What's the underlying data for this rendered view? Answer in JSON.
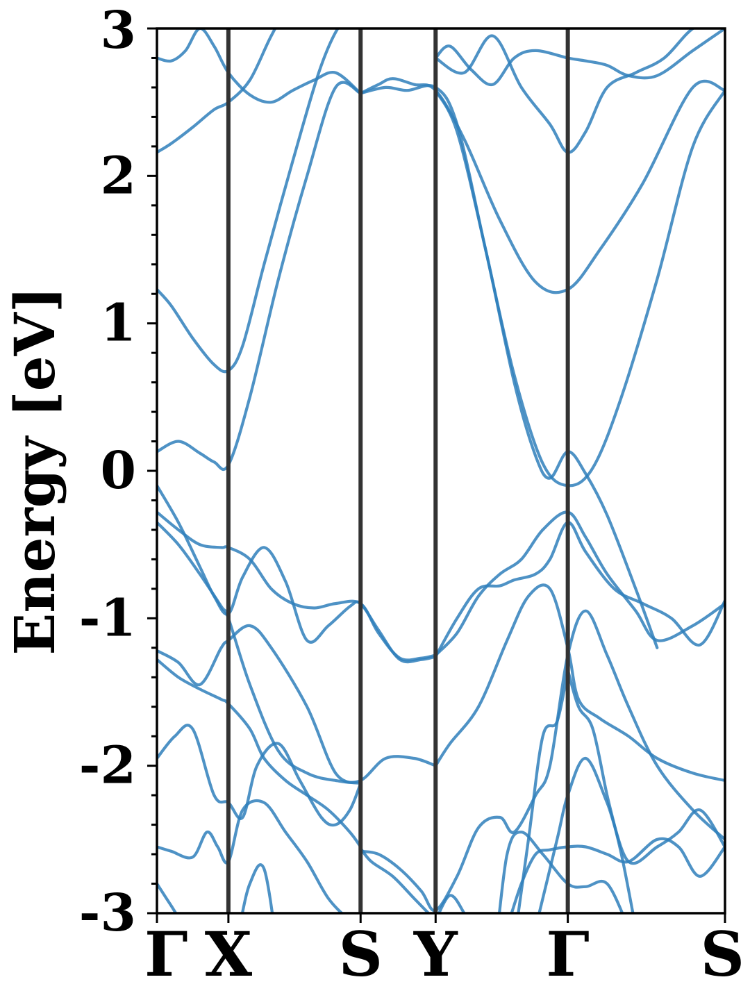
{
  "chart_data": {
    "type": "line",
    "title": "",
    "xlabel": "",
    "ylabel": "Energy [eV]",
    "ylim": [
      -3,
      3
    ],
    "yticks": [
      "-3",
      "-2",
      "-1",
      "0",
      "1",
      "2",
      "3"
    ],
    "kpoints": [
      {
        "label": "Γ",
        "x": 0.0
      },
      {
        "label": "X",
        "x": 1.0
      },
      {
        "label": "S",
        "x": 2.85
      },
      {
        "label": "Y",
        "x": 3.9
      },
      {
        "label": "Γ",
        "x": 5.75
      },
      {
        "label": "S",
        "x": 7.95
      }
    ],
    "colors": {
      "band": "#2f7fbb",
      "kline": "#333333"
    },
    "grid": false,
    "series": [
      {
        "x": [
          0,
          0.3,
          0.6,
          0.8,
          1.0,
          1.3,
          1.7,
          2.1,
          2.5,
          2.85
        ],
        "values": [
          0.13,
          0.2,
          0.12,
          0.06,
          0.04,
          0.5,
          1.3,
          2.0,
          2.6,
          2.56
        ]
      },
      {
        "x": [
          0,
          0.2,
          0.5,
          0.8,
          1.0,
          1.2,
          1.5,
          1.9,
          2.3,
          2.6,
          2.85
        ],
        "values": [
          1.23,
          1.12,
          0.9,
          0.72,
          0.68,
          0.85,
          1.4,
          2.1,
          2.75,
          3.05,
          3.1
        ]
      },
      {
        "x": [
          0,
          0.2,
          0.5,
          0.8,
          1.0,
          1.3,
          1.6,
          1.9,
          2.2,
          2.5,
          2.85
        ],
        "values": [
          2.16,
          2.22,
          2.33,
          2.45,
          2.5,
          2.65,
          2.95,
          3.2,
          3.3,
          3.2,
          3.1
        ]
      },
      {
        "x": [
          0,
          0.2,
          0.4,
          0.6,
          0.8,
          1.0,
          1.3,
          1.6,
          1.9,
          2.2,
          2.5,
          2.85
        ],
        "values": [
          2.8,
          2.78,
          2.85,
          3.0,
          2.88,
          2.7,
          2.55,
          2.5,
          2.58,
          2.65,
          2.7,
          2.56
        ]
      },
      {
        "x": [
          2.85,
          3.1,
          3.3,
          3.6,
          3.9,
          4.3,
          4.8,
          5.3,
          5.75,
          6.2,
          6.8,
          7.5,
          7.95
        ],
        "values": [
          2.56,
          2.62,
          2.66,
          2.62,
          2.58,
          2.25,
          1.7,
          1.28,
          1.23,
          1.5,
          1.95,
          2.6,
          2.58
        ]
      },
      {
        "x": [
          2.85,
          3.2,
          3.5,
          3.9,
          4.2,
          4.6,
          5.0,
          5.4,
          5.75,
          6.1,
          6.5,
          7.0,
          7.5,
          7.95
        ],
        "values": [
          2.56,
          2.6,
          2.58,
          2.6,
          2.35,
          1.5,
          0.65,
          0.05,
          -0.1,
          0.02,
          0.5,
          1.3,
          2.2,
          2.58
        ]
      },
      {
        "x": [
          3.9,
          4.1,
          4.4,
          4.7,
          5.0,
          5.3,
          5.75,
          6.0,
          6.3,
          6.6,
          7.0,
          7.5,
          7.95
        ],
        "values": [
          2.8,
          2.88,
          2.72,
          2.62,
          2.8,
          2.85,
          2.8,
          2.78,
          2.75,
          2.68,
          2.68,
          2.85,
          3.0
        ]
      },
      {
        "x": [
          3.9,
          4.2,
          4.6,
          5.0,
          5.3,
          5.5,
          5.75,
          6.0,
          6.3,
          6.7,
          7.0
        ],
        "values": [
          2.58,
          2.3,
          1.5,
          0.6,
          0.1,
          -0.05,
          0.13,
          -0.02,
          -0.3,
          -0.8,
          -1.2
        ]
      },
      {
        "x": [
          3.9,
          4.3,
          4.7,
          5.1,
          5.5,
          5.75,
          6.0,
          6.3,
          6.7,
          7.1,
          7.5,
          7.95
        ],
        "values": [
          2.8,
          2.7,
          2.95,
          2.6,
          2.35,
          2.16,
          2.3,
          2.6,
          2.7,
          2.8,
          3.0,
          3.1
        ]
      },
      {
        "x": [
          0,
          0.3,
          0.6,
          0.9,
          1.0,
          1.3,
          1.6,
          1.9,
          2.2,
          2.5,
          2.85,
          3.1,
          3.4,
          3.7,
          3.9
        ],
        "values": [
          -0.28,
          -0.4,
          -0.5,
          -0.52,
          -0.52,
          -0.6,
          -0.8,
          -0.9,
          -0.93,
          -0.9,
          -0.9,
          -1.1,
          -1.27,
          -1.27,
          -1.25
        ]
      },
      {
        "x": [
          3.9,
          4.2,
          4.5,
          4.8,
          5.1,
          5.4,
          5.75,
          6.0,
          6.3,
          6.7,
          7.0,
          7.5,
          7.95
        ],
        "values": [
          -1.25,
          -1.1,
          -0.85,
          -0.7,
          -0.6,
          -0.4,
          -0.28,
          -0.45,
          -0.7,
          -0.95,
          -1.15,
          -1.05,
          -0.9
        ]
      },
      {
        "x": [
          0,
          0.3,
          0.6,
          0.8,
          1.0,
          1.2,
          1.5,
          1.8,
          2.1,
          2.4,
          2.7,
          2.85,
          3.1,
          3.4,
          3.7,
          3.9
        ],
        "values": [
          -0.1,
          -0.35,
          -0.65,
          -0.85,
          -0.97,
          -0.72,
          -0.52,
          -0.75,
          -1.15,
          -1.05,
          -0.92,
          -0.9,
          -1.08,
          -1.28,
          -1.28,
          -1.26
        ]
      },
      {
        "x": [
          3.9,
          4.2,
          4.5,
          4.8,
          5.0,
          5.3,
          5.5,
          5.75,
          6.0,
          6.4,
          6.8,
          7.2,
          7.6,
          7.95
        ],
        "values": [
          -1.26,
          -1.0,
          -0.8,
          -0.78,
          -0.74,
          -0.7,
          -0.6,
          -0.35,
          -0.55,
          -0.8,
          -0.9,
          -1.0,
          -1.18,
          -0.88
        ]
      },
      {
        "x": [
          0,
          0.3,
          0.6,
          0.9,
          1.0,
          1.3,
          1.7,
          2.1,
          2.5,
          2.85,
          3.2,
          3.6,
          3.9
        ],
        "values": [
          -0.35,
          -0.5,
          -0.7,
          -0.92,
          -1.0,
          -1.45,
          -1.9,
          -2.05,
          -2.1,
          -2.1,
          -1.95,
          -1.95,
          -2.0
        ]
      },
      {
        "x": [
          3.9,
          4.1,
          4.5,
          4.9,
          5.2,
          5.5,
          5.75,
          5.9,
          6.2,
          6.6,
          7.0,
          7.5,
          7.95
        ],
        "values": [
          -2.0,
          -1.85,
          -1.6,
          -1.15,
          -0.85,
          -0.8,
          -1.2,
          -1.55,
          -1.68,
          -1.8,
          -1.95,
          -2.05,
          -2.1
        ]
      },
      {
        "x": [
          0,
          0.3,
          0.6,
          0.9,
          1.0,
          1.3,
          1.6,
          2.1,
          2.5,
          2.85
        ],
        "values": [
          -1.22,
          -1.3,
          -1.45,
          -1.2,
          -1.15,
          -1.05,
          -1.2,
          -1.6,
          -2.05,
          -2.12
        ]
      },
      {
        "x": [
          0,
          0.3,
          0.6,
          0.9,
          1.0,
          1.3,
          1.5,
          1.8,
          2.1,
          2.4,
          2.7,
          2.85
        ],
        "values": [
          -1.28,
          -1.4,
          -1.48,
          -1.55,
          -1.58,
          -1.75,
          -1.95,
          -2.1,
          -2.2,
          -2.3,
          -2.45,
          -2.55
        ]
      },
      {
        "x": [
          2.85,
          3.1,
          3.4,
          3.7,
          3.9,
          4.2,
          4.5,
          4.8,
          5.0,
          5.3,
          5.5,
          5.75,
          6.0,
          6.3,
          6.6,
          7.0,
          7.5,
          7.95
        ],
        "values": [
          -2.58,
          -2.6,
          -2.7,
          -2.85,
          -2.98,
          -2.75,
          -2.42,
          -2.35,
          -2.45,
          -2.2,
          -2.0,
          -1.25,
          -0.95,
          -1.25,
          -1.6,
          -2.0,
          -2.3,
          -2.5
        ]
      },
      {
        "x": [
          0,
          0.25,
          0.5,
          0.8,
          1.0,
          1.2,
          1.4,
          1.7,
          2.0,
          2.3,
          2.5,
          2.7,
          2.85
        ],
        "values": [
          -1.95,
          -1.8,
          -1.75,
          -2.2,
          -2.25,
          -2.35,
          -2.0,
          -1.85,
          -2.1,
          -2.35,
          -2.4,
          -2.3,
          -2.12
        ]
      },
      {
        "x": [
          0,
          0.2,
          0.5,
          0.7,
          0.85,
          1.0,
          1.2,
          1.5,
          1.8,
          2.1,
          2.4,
          2.7,
          2.85
        ],
        "values": [
          -2.55,
          -2.58,
          -2.62,
          -2.45,
          -2.55,
          -2.65,
          -2.3,
          -2.25,
          -2.45,
          -2.65,
          -2.9,
          -3.05,
          -3.1
        ]
      },
      {
        "x": [
          0,
          0.2,
          0.4,
          0.6,
          0.8,
          1.0,
          1.15,
          1.3,
          1.5,
          1.7
        ],
        "values": [
          -2.8,
          -2.95,
          -3.1,
          -3.2,
          -3.3,
          -3.4,
          -3.1,
          -2.8,
          -2.7,
          -3.3
        ]
      },
      {
        "x": [
          2.85,
          3.0,
          3.3,
          3.6,
          3.9
        ],
        "values": [
          -2.56,
          -2.65,
          -2.75,
          -2.9,
          -3.05
        ]
      },
      {
        "x": [
          3.9,
          4.1,
          4.3,
          4.5,
          4.7,
          4.9,
          5.1,
          5.4,
          5.75,
          6.0,
          6.3,
          6.6
        ],
        "values": [
          -3.05,
          -2.88,
          -3.0,
          -3.2,
          -3.3,
          -2.6,
          -2.45,
          -2.6,
          -2.8,
          -2.82,
          -2.8,
          -3.1
        ]
      },
      {
        "x": [
          4.9,
          5.1,
          5.3,
          5.5,
          5.75,
          6.0,
          6.3,
          6.6,
          7.0,
          7.3,
          7.6,
          7.95
        ],
        "values": [
          -3.1,
          -2.8,
          -2.6,
          -2.57,
          -2.55,
          -2.55,
          -2.6,
          -2.65,
          -2.5,
          -2.55,
          -2.75,
          -2.55
        ]
      },
      {
        "x": [
          5.3,
          5.6,
          5.75,
          6.0,
          6.3,
          6.6,
          7.0,
          7.3,
          7.6,
          7.95
        ],
        "values": [
          -3.1,
          -2.5,
          -2.2,
          -1.95,
          -2.25,
          -2.65,
          -2.55,
          -2.45,
          -2.3,
          -2.55
        ]
      },
      {
        "x": [
          5.0,
          5.2,
          5.4,
          5.6,
          5.75
        ],
        "values": [
          -3.2,
          -2.5,
          -1.8,
          -1.7,
          -1.35
        ]
      },
      {
        "x": [
          5.75,
          5.9,
          6.1,
          6.3,
          6.5,
          6.7
        ],
        "values": [
          -1.35,
          -1.6,
          -1.75,
          -2.2,
          -2.6,
          -3.1
        ]
      }
    ]
  }
}
